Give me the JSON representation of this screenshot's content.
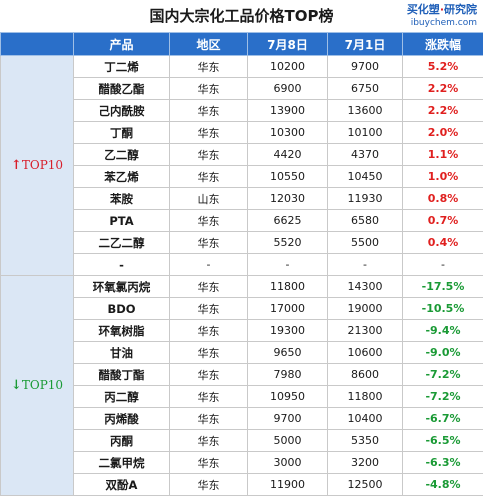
{
  "header": {
    "title": "国内大宗化工品价格TOP榜",
    "logo_brand_1": "买化塑",
    "logo_brand_sep": "·",
    "logo_brand_2": "研究院",
    "logo_url": "ibuychem.com"
  },
  "columns": {
    "product": "产品",
    "region": "地区",
    "date1": "7月8日",
    "date2": "7月1日",
    "change": "涨跌幅"
  },
  "up_group": {
    "arrow": "↑",
    "label": "TOP10",
    "color": "#d81e2a",
    "rows": [
      {
        "name": "丁二烯",
        "region": "华东",
        "p1": "10200",
        "p2": "9700",
        "chg": "5.2%"
      },
      {
        "name": "醋酸乙酯",
        "region": "华东",
        "p1": "6900",
        "p2": "6750",
        "chg": "2.2%"
      },
      {
        "name": "己内酰胺",
        "region": "华东",
        "p1": "13900",
        "p2": "13600",
        "chg": "2.2%"
      },
      {
        "name": "丁酮",
        "region": "华东",
        "p1": "10300",
        "p2": "10100",
        "chg": "2.0%"
      },
      {
        "name": "乙二醇",
        "region": "华东",
        "p1": "4420",
        "p2": "4370",
        "chg": "1.1%"
      },
      {
        "name": "苯乙烯",
        "region": "华东",
        "p1": "10550",
        "p2": "10450",
        "chg": "1.0%"
      },
      {
        "name": "苯胺",
        "region": "山东",
        "p1": "12030",
        "p2": "11930",
        "chg": "0.8%"
      },
      {
        "name": "PTA",
        "region": "华东",
        "p1": "6625",
        "p2": "6580",
        "chg": "0.7%"
      },
      {
        "name": "二乙二醇",
        "region": "华东",
        "p1": "5520",
        "p2": "5500",
        "chg": "0.4%"
      },
      {
        "name": "-",
        "region": "-",
        "p1": "-",
        "p2": "-",
        "chg": "-"
      }
    ]
  },
  "down_group": {
    "arrow": "↓",
    "label": "TOP10",
    "color": "#1a9a35",
    "rows": [
      {
        "name": "环氧氯丙烷",
        "region": "华东",
        "p1": "11800",
        "p2": "14300",
        "chg": "-17.5%"
      },
      {
        "name": "BDO",
        "region": "华东",
        "p1": "17000",
        "p2": "19000",
        "chg": "-10.5%"
      },
      {
        "name": "环氧树脂",
        "region": "华东",
        "p1": "19300",
        "p2": "21300",
        "chg": "-9.4%"
      },
      {
        "name": "甘油",
        "region": "华东",
        "p1": "9650",
        "p2": "10600",
        "chg": "-9.0%"
      },
      {
        "name": "醋酸丁酯",
        "region": "华东",
        "p1": "7980",
        "p2": "8600",
        "chg": "-7.2%"
      },
      {
        "name": "丙二醇",
        "region": "华东",
        "p1": "10950",
        "p2": "11800",
        "chg": "-7.2%"
      },
      {
        "name": "丙烯酸",
        "region": "华东",
        "p1": "9700",
        "p2": "10400",
        "chg": "-6.7%"
      },
      {
        "name": "丙酮",
        "region": "华东",
        "p1": "5000",
        "p2": "5350",
        "chg": "-6.5%"
      },
      {
        "name": "二氯甲烷",
        "region": "华东",
        "p1": "3000",
        "p2": "3200",
        "chg": "-6.3%"
      },
      {
        "name": "双酚A",
        "region": "华东",
        "p1": "11900",
        "p2": "12500",
        "chg": "-4.8%"
      }
    ]
  }
}
